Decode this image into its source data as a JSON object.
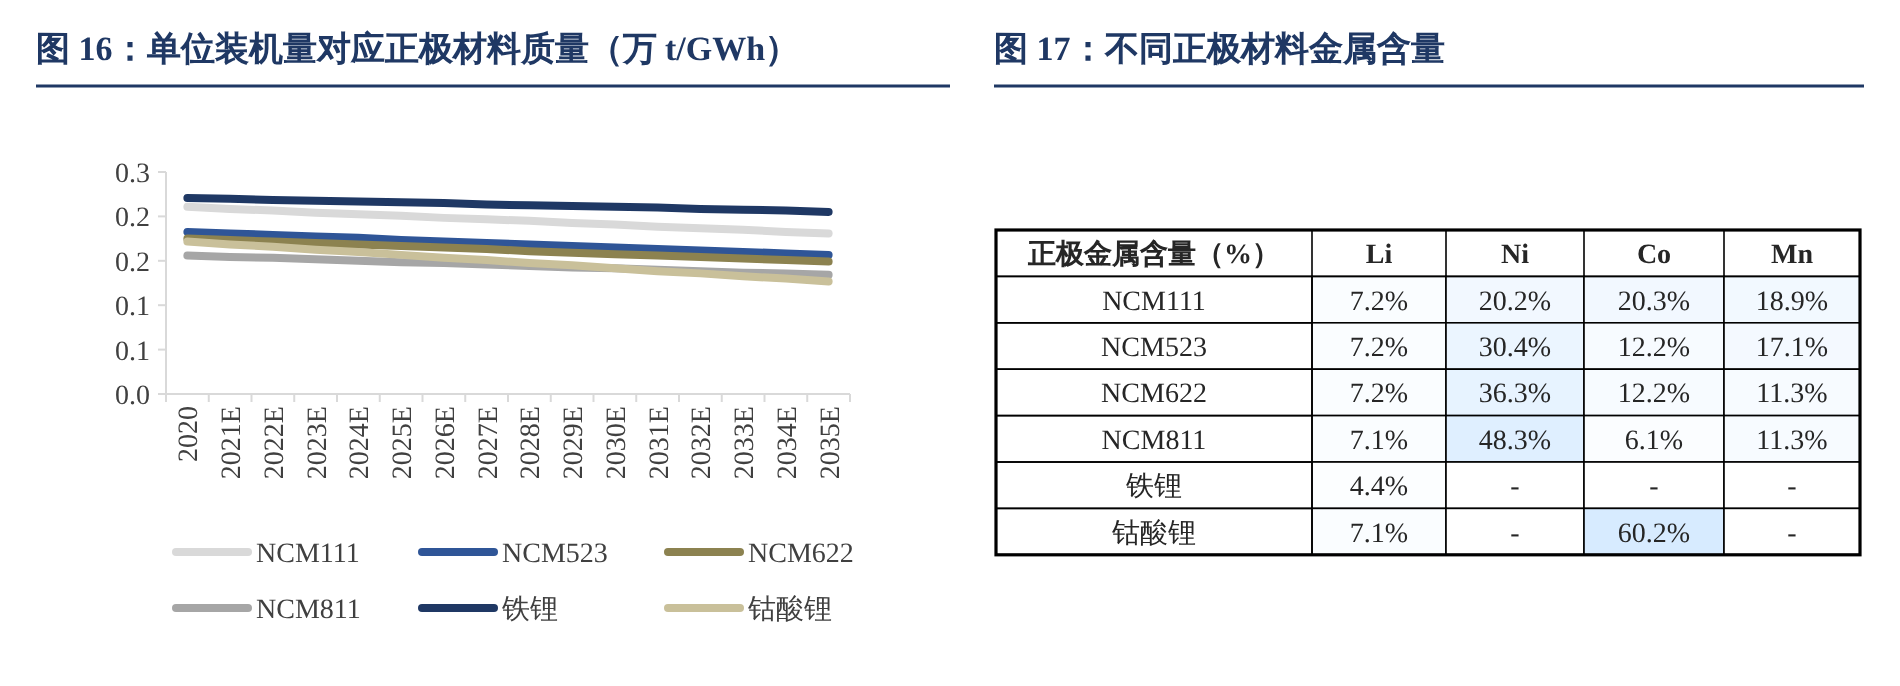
{
  "chart_data": [
    {
      "type": "line",
      "title": "图 16：单位装机量对应正极材料质量（万 t/GWh）",
      "categories": [
        "2020",
        "2021E",
        "2022E",
        "2023E",
        "2024E",
        "2025E",
        "2026E",
        "2027E",
        "2028E",
        "2029E",
        "2030E",
        "2031E",
        "2032E",
        "2033E",
        "2034E",
        "2035E"
      ],
      "ylim": [
        0,
        0.3
      ],
      "yticks": [
        {
          "value": 0,
          "label": "0.0"
        },
        {
          "value": 0.06,
          "label": "0.1"
        },
        {
          "value": 0.12,
          "label": "0.1"
        },
        {
          "value": 0.18,
          "label": "0.2"
        },
        {
          "value": 0.24,
          "label": "0.2"
        },
        {
          "value": 0.3,
          "label": "0.3"
        }
      ],
      "grid": false,
      "legend": "bottom",
      "marker": "none",
      "line_style": "solid",
      "series": [
        {
          "name": "NCM111",
          "color": "#d9d9d9",
          "values": [
            0.253,
            0.25,
            0.248,
            0.245,
            0.243,
            0.241,
            0.238,
            0.236,
            0.234,
            0.231,
            0.229,
            0.226,
            0.224,
            0.222,
            0.219,
            0.217
          ]
        },
        {
          "name": "NCM523",
          "color": "#2f5597",
          "values": [
            0.219,
            0.217,
            0.215,
            0.213,
            0.211,
            0.208,
            0.206,
            0.204,
            0.202,
            0.2,
            0.198,
            0.196,
            0.194,
            0.192,
            0.19,
            0.188
          ]
        },
        {
          "name": "NCM622",
          "color": "#8c8250",
          "values": [
            0.21,
            0.208,
            0.206,
            0.204,
            0.202,
            0.2,
            0.198,
            0.196,
            0.193,
            0.191,
            0.189,
            0.187,
            0.185,
            0.183,
            0.181,
            0.179
          ]
        },
        {
          "name": "NCM811",
          "color": "#a6a6a6",
          "values": [
            0.187,
            0.185,
            0.184,
            0.182,
            0.18,
            0.178,
            0.177,
            0.175,
            0.173,
            0.171,
            0.17,
            0.168,
            0.166,
            0.164,
            0.163,
            0.161
          ]
        },
        {
          "name": "铁锂",
          "color": "#1f3864",
          "values": [
            0.265,
            0.264,
            0.262,
            0.261,
            0.26,
            0.259,
            0.258,
            0.256,
            0.255,
            0.254,
            0.253,
            0.252,
            0.25,
            0.249,
            0.248,
            0.246
          ]
        },
        {
          "name": "钴酸锂",
          "color": "#c9c09a",
          "values": [
            0.206,
            0.202,
            0.199,
            0.195,
            0.192,
            0.188,
            0.184,
            0.181,
            0.177,
            0.174,
            0.17,
            0.166,
            0.163,
            0.159,
            0.156,
            0.152
          ]
        }
      ]
    },
    {
      "type": "heatmap",
      "title": "图 17：不同正极材料金属含量",
      "ylabel": "正极金属含量（%）",
      "categories": [
        "Li",
        "Ni",
        "Co",
        "Mn"
      ],
      "y_categories": [
        "NCM111",
        "NCM523",
        "NCM622",
        "NCM811",
        "铁锂",
        "钴酸锂"
      ],
      "cells": [
        [
          7.2,
          20.2,
          20.3,
          18.9
        ],
        [
          7.2,
          30.4,
          12.2,
          17.1
        ],
        [
          7.2,
          36.3,
          12.2,
          11.3
        ],
        [
          7.1,
          48.3,
          6.1,
          11.3
        ],
        [
          4.4,
          null,
          null,
          null
        ],
        [
          7.1,
          null,
          60.2,
          null
        ]
      ],
      "cell_labels": [
        [
          "7.2%",
          "20.2%",
          "20.3%",
          "18.9%"
        ],
        [
          "7.2%",
          "30.4%",
          "12.2%",
          "17.1%"
        ],
        [
          "7.2%",
          "36.3%",
          "12.2%",
          "11.3%"
        ],
        [
          "7.1%",
          "48.3%",
          "6.1%",
          "11.3%"
        ],
        [
          "4.4%",
          "-",
          "-",
          "-"
        ],
        [
          "7.1%",
          "-",
          "60.2%",
          "-"
        ]
      ]
    }
  ]
}
